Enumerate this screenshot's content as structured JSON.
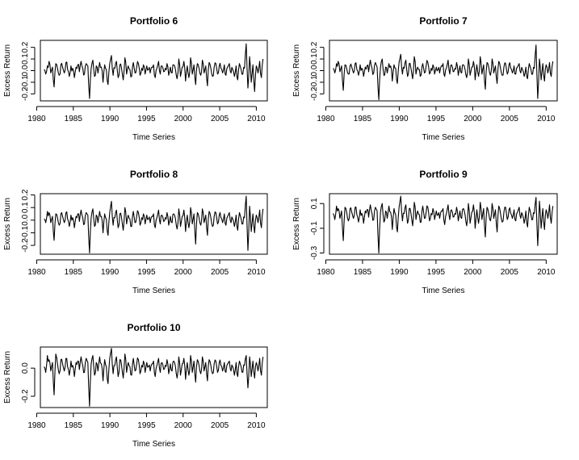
{
  "figure": {
    "background": "#ffffff",
    "line_color": "#000000"
  },
  "chart_data": [
    {
      "type": "line",
      "title": "Portfolio 6",
      "xlabel": "Time Series",
      "ylabel": "Excess Return",
      "xlim": [
        1980.5,
        2011.5
      ],
      "ylim": [
        -0.26,
        0.26
      ],
      "xticks": [
        1980,
        1985,
        1990,
        1995,
        2000,
        2005,
        2010
      ],
      "yticks": [
        -0.2,
        -0.1,
        0.0,
        0.1,
        0.2
      ],
      "ytick_labels": [
        "-0.2",
        "-0.1",
        "0.0",
        "0.1",
        "0.2"
      ],
      "grid": false,
      "x_start": 1981.0,
      "x_end": 2010.92,
      "values": [
        0.01,
        -0.03,
        0.04,
        0.08,
        -0.02,
        0.03,
        -0.14,
        0.06,
        0.02,
        -0.04,
        0.05,
        0.03,
        -0.02,
        0.07,
        0.01,
        -0.05,
        0.04,
        0.02,
        -0.06,
        0.03,
        0.05,
        -0.01,
        0.08,
        0.02,
        -0.03,
        0.06,
        0.04,
        -0.24,
        0.02,
        0.09,
        -0.05,
        0.04,
        -0.02,
        0.07,
        0.03,
        -0.1,
        0.05,
        0.01,
        -0.12,
        0.06,
        0.13,
        -0.04,
        0.02,
        0.08,
        -0.06,
        0.05,
        0.02,
        -0.08,
        0.11,
        -0.03,
        0.04,
        0.01,
        -0.05,
        0.07,
        -0.02,
        0.03,
        0.06,
        -0.04,
        0.02,
        0.05,
        -0.03,
        0.04,
        0.01,
        -0.02,
        0.03,
        0.05,
        -0.06,
        0.02,
        0.08,
        -0.03,
        0.04,
        -0.01,
        0.02,
        0.06,
        -0.04,
        0.03,
        -0.02,
        0.05,
        0.01,
        -0.07,
        0.1,
        -0.05,
        0.03,
        0.08,
        -0.09,
        0.04,
        -0.06,
        0.11,
        -0.03,
        0.05,
        -0.12,
        0.06,
        0.02,
        -0.04,
        0.09,
        -0.02,
        0.04,
        -0.13,
        0.07,
        0.02,
        -0.05,
        0.03,
        0.06,
        -0.03,
        0.04,
        0.02,
        -0.02,
        0.05,
        -0.04,
        0.03,
        0.06,
        -0.02,
        0.01,
        -0.05,
        0.04,
        -0.08,
        0.06,
        0.01,
        -0.03,
        0.02,
        0.23,
        -0.15,
        0.12,
        -0.1,
        0.05,
        -0.18,
        0.04,
        -0.02,
        0.08,
        -0.06,
        0.1
      ]
    },
    {
      "type": "line",
      "title": "Portfolio 7",
      "xlabel": "Time Series",
      "ylabel": "Excess Return",
      "xlim": [
        1980.5,
        2011.5
      ],
      "ylim": [
        -0.26,
        0.26
      ],
      "xticks": [
        1980,
        1985,
        1990,
        1995,
        2000,
        2005,
        2010
      ],
      "yticks": [
        -0.2,
        -0.1,
        0.0,
        0.1,
        0.2
      ],
      "ytick_labels": [
        "-0.2",
        "-0.1",
        "0.0",
        "0.1",
        "0.2"
      ],
      "grid": false,
      "x_start": 1981.0,
      "x_end": 2010.92,
      "values": [
        0.02,
        -0.02,
        0.06,
        0.08,
        -0.01,
        0.04,
        -0.17,
        0.05,
        0.02,
        -0.03,
        0.04,
        0.03,
        -0.02,
        0.06,
        0.01,
        -0.04,
        0.05,
        0.02,
        -0.05,
        0.03,
        0.04,
        -0.01,
        0.09,
        0.02,
        -0.02,
        0.07,
        0.03,
        -0.25,
        0.03,
        0.1,
        -0.04,
        0.03,
        -0.02,
        0.06,
        0.04,
        -0.09,
        0.05,
        0.02,
        -0.11,
        0.07,
        0.14,
        -0.03,
        0.02,
        0.09,
        -0.05,
        0.06,
        0.02,
        -0.07,
        0.12,
        -0.03,
        0.03,
        0.01,
        -0.04,
        0.06,
        -0.02,
        0.04,
        0.07,
        -0.03,
        0.02,
        0.05,
        -0.03,
        0.03,
        0.01,
        -0.02,
        0.04,
        0.06,
        -0.05,
        0.02,
        0.09,
        -0.03,
        0.05,
        -0.01,
        0.02,
        0.07,
        -0.04,
        0.04,
        -0.02,
        0.05,
        0.01,
        -0.06,
        0.1,
        -0.04,
        0.03,
        0.08,
        -0.08,
        0.05,
        -0.05,
        0.12,
        -0.03,
        0.05,
        -0.16,
        0.07,
        0.03,
        -0.04,
        0.1,
        -0.02,
        0.04,
        -0.11,
        0.08,
        0.02,
        -0.04,
        0.03,
        0.06,
        -0.03,
        0.05,
        0.02,
        -0.02,
        0.04,
        -0.03,
        0.03,
        0.06,
        -0.02,
        0.01,
        -0.05,
        0.03,
        -0.07,
        0.06,
        0.01,
        -0.03,
        0.02,
        0.22,
        -0.24,
        0.1,
        -0.08,
        0.06,
        -0.09,
        0.05,
        -0.02,
        0.07,
        -0.05,
        0.08
      ]
    },
    {
      "type": "line",
      "title": "Portfolio 8",
      "xlabel": "Time Series",
      "ylabel": "Excess Return",
      "xlim": [
        1980.5,
        2011.5
      ],
      "ylim": [
        -0.27,
        0.21
      ],
      "xticks": [
        1980,
        1985,
        1990,
        1995,
        2000,
        2005,
        2010
      ],
      "yticks": [
        -0.2,
        -0.1,
        0.0,
        0.1,
        0.2
      ],
      "ytick_labels": [
        "-0.2",
        "-0.1",
        "0.0",
        "0.1",
        "0.2"
      ],
      "grid": false,
      "x_start": 1981.0,
      "x_end": 2010.92,
      "values": [
        0.01,
        -0.02,
        0.07,
        0.06,
        -0.02,
        0.03,
        -0.16,
        0.05,
        0.02,
        -0.04,
        0.05,
        0.03,
        -0.02,
        0.06,
        0.01,
        -0.05,
        0.04,
        0.02,
        -0.06,
        0.03,
        0.05,
        -0.01,
        0.08,
        0.02,
        -0.03,
        0.06,
        0.04,
        -0.26,
        0.02,
        0.09,
        -0.05,
        0.04,
        -0.02,
        0.07,
        0.03,
        -0.1,
        0.05,
        0.01,
        -0.12,
        0.06,
        0.15,
        -0.04,
        0.02,
        0.08,
        -0.06,
        0.05,
        0.02,
        -0.08,
        0.1,
        -0.03,
        0.04,
        0.01,
        -0.05,
        0.07,
        -0.02,
        0.03,
        0.06,
        -0.04,
        0.02,
        0.05,
        -0.03,
        0.04,
        0.01,
        -0.02,
        0.03,
        0.05,
        -0.06,
        0.02,
        0.08,
        -0.03,
        0.04,
        -0.01,
        0.02,
        0.06,
        -0.04,
        0.03,
        -0.02,
        0.05,
        0.01,
        -0.07,
        0.09,
        -0.05,
        0.03,
        0.08,
        -0.09,
        0.04,
        -0.06,
        0.1,
        -0.03,
        0.05,
        -0.19,
        0.06,
        0.02,
        -0.04,
        0.09,
        -0.02,
        0.04,
        -0.12,
        0.07,
        0.02,
        -0.05,
        0.03,
        0.06,
        -0.03,
        0.04,
        0.02,
        -0.02,
        0.05,
        -0.04,
        0.03,
        0.06,
        -0.02,
        0.01,
        -0.05,
        0.04,
        -0.08,
        0.06,
        0.01,
        -0.03,
        0.02,
        0.19,
        -0.24,
        0.11,
        -0.09,
        0.05,
        -0.1,
        0.04,
        -0.02,
        0.08,
        -0.06,
        0.09
      ]
    },
    {
      "type": "line",
      "title": "Portfolio 9",
      "xlabel": "Time Series",
      "ylabel": "Excess Return",
      "xlim": [
        1980.5,
        2011.5
      ],
      "ylim": [
        -0.31,
        0.18
      ],
      "xticks": [
        1980,
        1985,
        1990,
        1995,
        2000,
        2005,
        2010
      ],
      "yticks": [
        -0.3,
        -0.1,
        0.1
      ],
      "ytick_labels": [
        "-0.3",
        "-0.1",
        "0.1"
      ],
      "grid": false,
      "x_start": 1981.0,
      "x_end": 2010.92,
      "values": [
        0.02,
        -0.03,
        0.08,
        0.06,
        -0.02,
        0.04,
        -0.2,
        0.07,
        0.03,
        -0.04,
        0.06,
        0.03,
        -0.02,
        0.07,
        0.01,
        -0.05,
        0.05,
        0.02,
        -0.06,
        0.04,
        0.05,
        -0.01,
        0.09,
        0.02,
        -0.03,
        0.07,
        0.04,
        -0.3,
        0.03,
        0.1,
        -0.05,
        0.04,
        -0.02,
        0.08,
        0.03,
        -0.11,
        0.06,
        0.01,
        -0.13,
        0.07,
        0.16,
        -0.04,
        0.02,
        0.09,
        -0.06,
        0.06,
        0.02,
        -0.08,
        0.11,
        -0.03,
        0.04,
        0.01,
        -0.05,
        0.08,
        -0.02,
        0.03,
        0.07,
        -0.04,
        0.02,
        0.06,
        -0.03,
        0.04,
        0.01,
        -0.02,
        0.04,
        0.06,
        -0.07,
        0.02,
        0.09,
        -0.03,
        0.05,
        -0.01,
        0.02,
        0.07,
        -0.04,
        0.04,
        -0.02,
        0.06,
        0.01,
        -0.08,
        0.1,
        -0.06,
        0.03,
        0.09,
        -0.1,
        0.05,
        -0.06,
        0.11,
        -0.03,
        0.06,
        -0.17,
        0.07,
        0.02,
        -0.04,
        0.1,
        -0.02,
        0.05,
        -0.13,
        0.08,
        0.02,
        -0.05,
        0.03,
        0.07,
        -0.03,
        0.05,
        0.02,
        -0.02,
        0.05,
        -0.04,
        0.03,
        0.07,
        -0.02,
        0.01,
        -0.06,
        0.04,
        -0.09,
        0.07,
        0.01,
        -0.03,
        0.02,
        0.15,
        -0.24,
        0.12,
        -0.1,
        0.06,
        -0.11,
        0.05,
        -0.02,
        0.09,
        -0.06,
        0.08
      ]
    },
    {
      "type": "line",
      "title": "Portfolio 10",
      "xlabel": "Time Series",
      "ylabel": "Excess Return",
      "xlim": [
        1980.5,
        2011.5
      ],
      "ylim": [
        -0.28,
        0.15
      ],
      "xticks": [
        1980,
        1985,
        1990,
        1995,
        2000,
        2005,
        2010
      ],
      "yticks": [
        -0.2,
        0.0
      ],
      "ytick_labels": [
        "-0.2",
        "0.0"
      ],
      "grid": false,
      "x_start": 1981.0,
      "x_end": 2010.92,
      "values": [
        0.01,
        -0.03,
        0.09,
        0.06,
        -0.02,
        0.04,
        -0.19,
        0.1,
        0.03,
        -0.04,
        0.06,
        0.03,
        -0.02,
        0.07,
        0.01,
        -0.05,
        0.05,
        0.02,
        -0.06,
        0.04,
        0.05,
        -0.01,
        0.08,
        0.02,
        -0.03,
        0.07,
        0.04,
        -0.27,
        0.03,
        0.09,
        -0.05,
        0.04,
        -0.02,
        0.08,
        0.03,
        -0.09,
        0.06,
        0.01,
        -0.11,
        0.07,
        0.14,
        -0.04,
        0.02,
        0.08,
        -0.06,
        0.06,
        0.02,
        -0.07,
        0.1,
        -0.03,
        0.04,
        0.01,
        -0.05,
        0.07,
        -0.02,
        0.03,
        0.06,
        -0.04,
        0.02,
        0.05,
        -0.03,
        0.04,
        0.01,
        -0.02,
        0.03,
        0.05,
        -0.06,
        0.02,
        0.07,
        -0.03,
        0.04,
        -0.01,
        0.02,
        0.06,
        -0.04,
        0.03,
        -0.02,
        0.05,
        0.01,
        -0.07,
        0.08,
        -0.05,
        0.03,
        0.07,
        -0.08,
        0.04,
        -0.05,
        0.09,
        -0.03,
        0.05,
        -0.1,
        0.06,
        0.02,
        -0.04,
        0.08,
        -0.02,
        0.04,
        -0.09,
        0.06,
        0.02,
        -0.04,
        0.03,
        0.05,
        -0.03,
        0.04,
        0.02,
        -0.02,
        0.04,
        -0.03,
        0.03,
        0.05,
        -0.02,
        0.01,
        -0.05,
        0.04,
        -0.06,
        0.05,
        0.01,
        -0.03,
        0.02,
        0.09,
        -0.14,
        0.08,
        -0.06,
        0.05,
        -0.07,
        0.04,
        -0.02,
        0.07,
        -0.05,
        0.08
      ]
    }
  ]
}
